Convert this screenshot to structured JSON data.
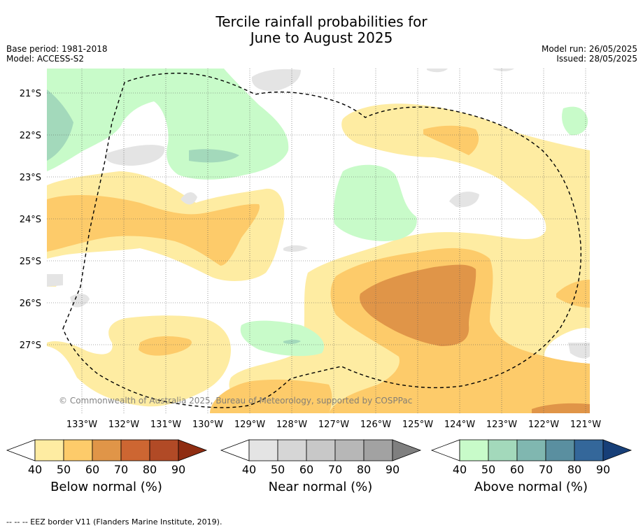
{
  "title_line1": "Tercile rainfall probabilities for",
  "title_line2": "June to August 2025",
  "base_period": "Base period: 1981-2018",
  "model": "Model: ACCESS-S2",
  "model_run": "Model run: 26/05/2025",
  "issued": "Issued: 28/05/2025",
  "copyright": "© Commonwealth of Australia 2025, Bureau of Meteorology, supported by COSPPac",
  "footer": "--  --  -- EEZ border V11 (Flanders Marine Institute, 2019).",
  "lat_labels": [
    "21°S",
    "22°S",
    "23°S",
    "24°S",
    "25°S",
    "26°S",
    "27°S"
  ],
  "lon_labels": [
    "133°W",
    "132°W",
    "131°W",
    "130°W",
    "129°W",
    "128°W",
    "127°W",
    "126°W",
    "125°W",
    "124°W",
    "123°W",
    "122°W",
    "121°W"
  ],
  "colorbars": [
    {
      "name": "below",
      "label": "Below normal (%)",
      "ticks": [
        "40",
        "50",
        "60",
        "70",
        "80",
        "90"
      ],
      "colors": [
        "#ffffff",
        "#feeca2",
        "#fdcb6a",
        "#e09548",
        "#cd6632",
        "#b14a26",
        "#8f2d12"
      ]
    },
    {
      "name": "near",
      "label": "Near normal (%)",
      "ticks": [
        "40",
        "50",
        "60",
        "70",
        "80",
        "90"
      ],
      "colors": [
        "#ffffff",
        "#e4e4e4",
        "#d6d6d6",
        "#c8c8c8",
        "#b7b7b7",
        "#a2a2a2",
        "#7f7f7f"
      ]
    },
    {
      "name": "above",
      "label": "Above normal (%)",
      "ticks": [
        "40",
        "50",
        "60",
        "70",
        "80",
        "90"
      ],
      "colors": [
        "#ffffff",
        "#c8fbc9",
        "#a3d9bb",
        "#80b7b0",
        "#5a8fa0",
        "#34679a",
        "#173f78"
      ]
    }
  ]
}
